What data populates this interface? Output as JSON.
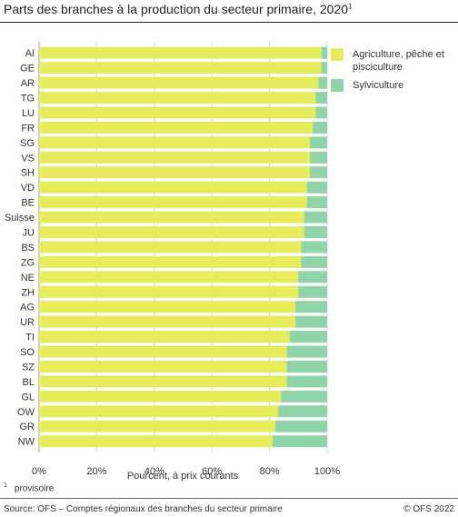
{
  "title": "Parts des branches à la production du secteur primaire, 2020",
  "title_note_mark": "1",
  "footnote": {
    "mark": "1",
    "text": "provisoire"
  },
  "source": "Source: OFS – Comptes régionaux des branches du secteur primaire",
  "copyright": "© OFS 2022",
  "chart_data": {
    "type": "bar",
    "orientation": "horizontal",
    "stacked": true,
    "percent": true,
    "categories": [
      "AI",
      "GE",
      "AR",
      "TG",
      "LU",
      "FR",
      "SG",
      "VS",
      "SH",
      "VD",
      "BE",
      "Suisse",
      "JU",
      "BS",
      "ZG",
      "NE",
      "ZH",
      "AG",
      "UR",
      "TI",
      "SO",
      "SZ",
      "BL",
      "GL",
      "OW",
      "GR",
      "NW"
    ],
    "series": [
      {
        "name": "Agriculture, pêche et pisciculture",
        "color": "#e6ec5c",
        "values": [
          98,
          98,
          97,
          96,
          96,
          95,
          94,
          94,
          94,
          93,
          93,
          92,
          92,
          91,
          91,
          90,
          90,
          89,
          89,
          87,
          86,
          86,
          86,
          84,
          83,
          82,
          81
        ]
      },
      {
        "name": "Sylviculture",
        "color": "#8fd5a7",
        "values": [
          2,
          2,
          3,
          4,
          4,
          5,
          6,
          6,
          6,
          7,
          7,
          8,
          8,
          9,
          9,
          10,
          10,
          11,
          11,
          13,
          14,
          14,
          14,
          16,
          17,
          18,
          19
        ]
      }
    ],
    "xlabel": "Pourcent, à prix courants",
    "xlim": [
      0,
      100
    ],
    "xticks": [
      "0%",
      "20%",
      "40%",
      "60%",
      "80%",
      "100%"
    ],
    "grid": true,
    "legend_position": "right"
  }
}
